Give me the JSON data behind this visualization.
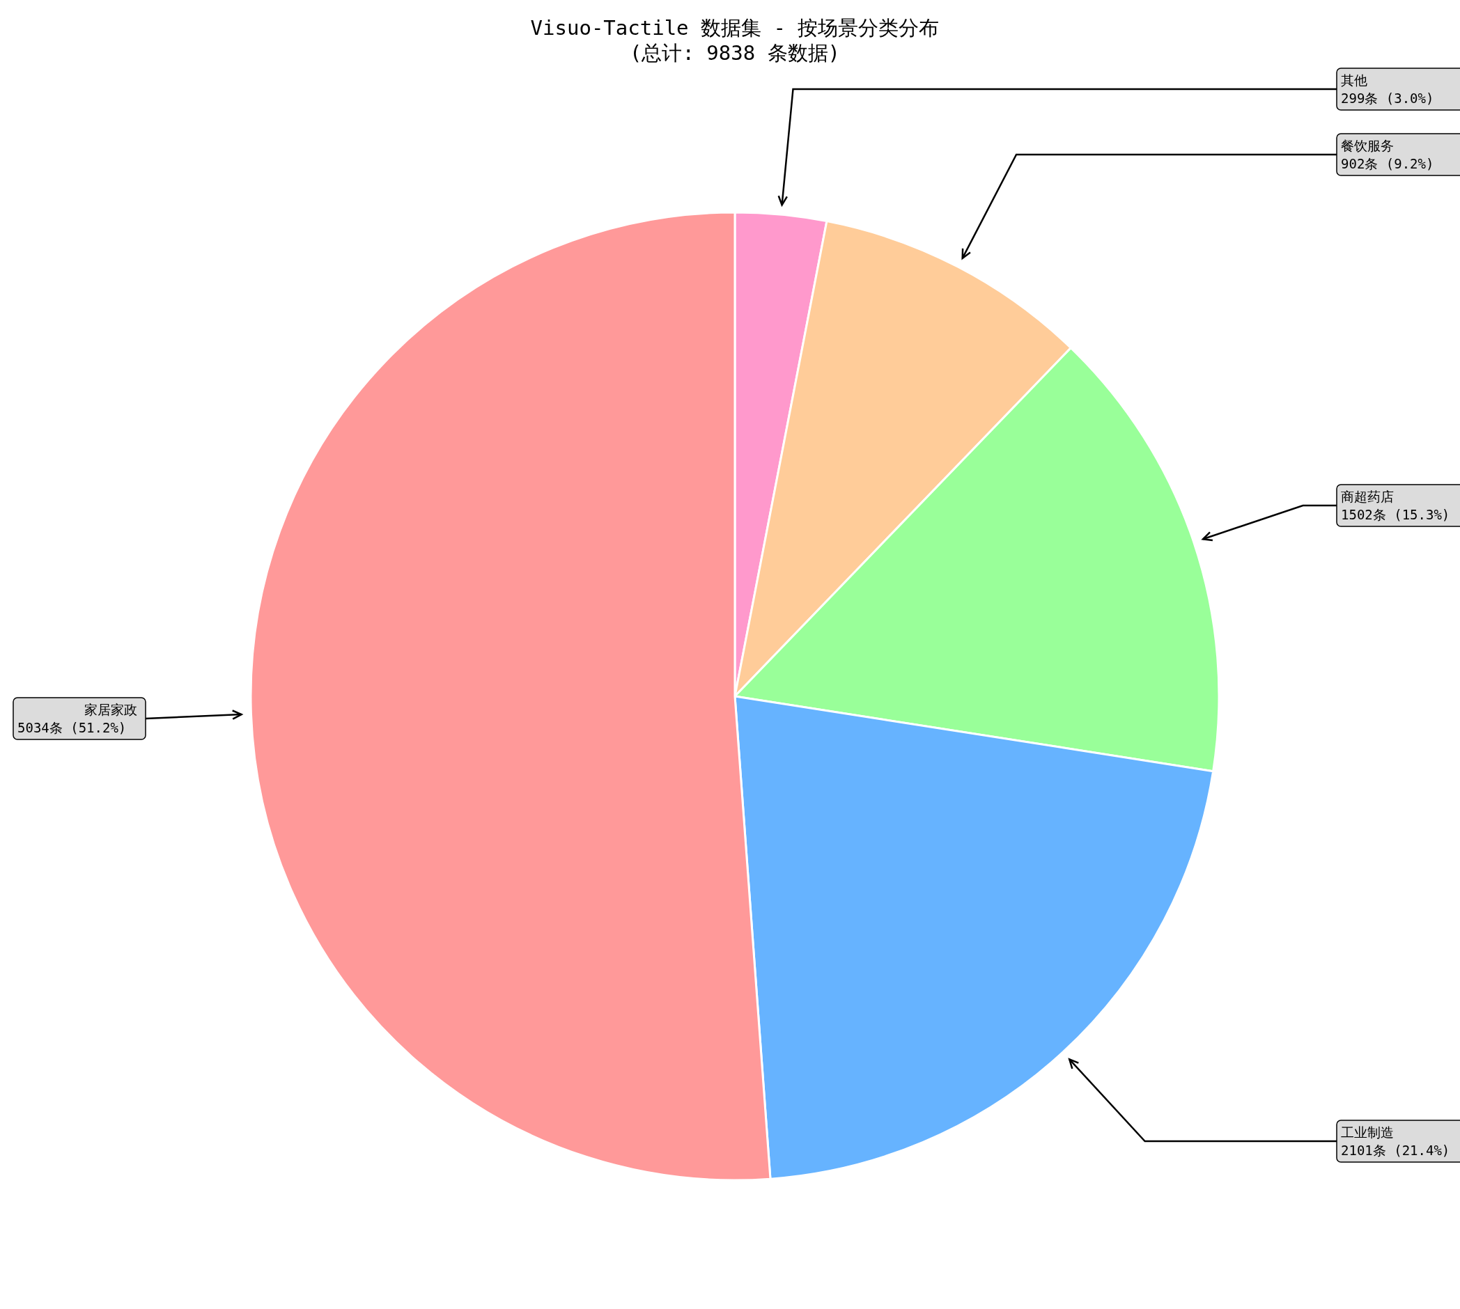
{
  "chart_data": {
    "type": "pie",
    "title": "Visuo-Tactile 数据集 - 按场景分类分布",
    "subtitle": "(总计: 9838 条数据)",
    "categories": [
      "其他",
      "餐饮服务",
      "商超药店",
      "工业制造",
      "家居家政"
    ],
    "values": [
      299,
      902,
      1502,
      2101,
      5034
    ],
    "value_labels": [
      "299条 (3.0%)",
      "902条 (9.2%)",
      "1502条 (15.3%)",
      "2101条 (21.4%)",
      "5034条 (51.2%)"
    ],
    "colors": [
      "#ff99cc",
      "#ffcc99",
      "#99ff99",
      "#66b3ff",
      "#ff9999"
    ]
  }
}
